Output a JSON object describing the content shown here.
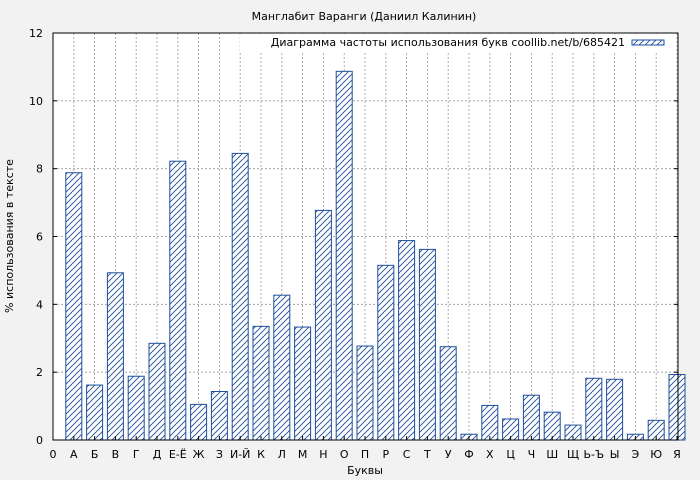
{
  "chart_data": {
    "type": "bar",
    "title": "Манглабит Варанги (Даниил Калинин)",
    "xlabel": "Буквы",
    "ylabel": "% использования в тексте",
    "legend": "Диаграмма частоты использования букв coollib.net/b/685421",
    "legend_position": "top-right",
    "grid": true,
    "ylim": [
      0,
      12
    ],
    "yticks": [
      "0",
      "2",
      "4",
      "6",
      "8",
      "10",
      "12"
    ],
    "xtick_zero": "0",
    "categories": [
      "А",
      "Б",
      "В",
      "Г",
      "Д",
      "Е-Ё",
      "Ж",
      "З",
      "И-Й",
      "К",
      "Л",
      "М",
      "Н",
      "О",
      "П",
      "Р",
      "С",
      "Т",
      "У",
      "Ф",
      "Х",
      "Ц",
      "Ч",
      "Ш",
      "Щ",
      "Ь-Ъ",
      "Ы",
      "Э",
      "Ю",
      "Я"
    ],
    "values": [
      7.88,
      1.62,
      4.93,
      1.88,
      2.85,
      8.22,
      1.05,
      1.43,
      8.45,
      3.35,
      4.27,
      3.33,
      6.77,
      10.87,
      2.77,
      5.15,
      5.88,
      5.62,
      2.75,
      0.17,
      1.02,
      0.62,
      1.32,
      0.82,
      0.44,
      1.82,
      1.79,
      0.17,
      0.58,
      1.93
    ],
    "colors": {
      "bar_stroke": "#1f4e9c",
      "bar_hatch": "#1f4e9c",
      "bar_fill": "#ffffff",
      "grid": "#999999",
      "plot_bg": "#ffffff"
    }
  }
}
